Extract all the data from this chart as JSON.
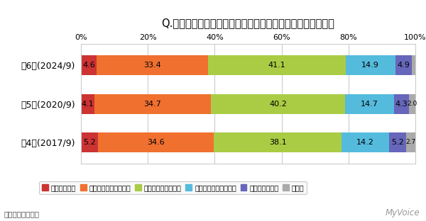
{
  "title": "Q.健康食品を利用した効果を、どの程度実感していますか？",
  "rows": [
    "第6回(2024/9)",
    "第5回(2020/9)",
    "第4回(2017/9)"
  ],
  "categories": [
    "実感している",
    "ある程度実感している",
    "どちらともいえない",
    "あまり実感していない",
    "実感していない",
    "無回答"
  ],
  "colors": [
    "#cc3333",
    "#f07030",
    "#aacc44",
    "#55bbdd",
    "#6666bb",
    "#aaaaaa"
  ],
  "data": [
    [
      4.6,
      33.4,
      41.1,
      14.9,
      4.9,
      1.2
    ],
    [
      4.1,
      34.7,
      40.2,
      14.7,
      4.3,
      2.0
    ],
    [
      5.2,
      34.6,
      38.1,
      14.2,
      5.2,
      2.7
    ]
  ],
  "xlim": [
    0,
    100
  ],
  "xticks": [
    0,
    20,
    40,
    60,
    80,
    100
  ],
  "xticklabels": [
    "0%",
    "20%",
    "40%",
    "60%",
    "80%",
    "100%"
  ],
  "footer_left": "：健康食品利用者",
  "footer_right": "MyVoice",
  "bg_color": "#ffffff",
  "chart_bg": "#ffffff",
  "legend_bg": "#f8f8f8",
  "bar_height": 0.52,
  "label_fontsize": 8,
  "title_fontsize": 10.5,
  "ytick_fontsize": 9,
  "xtick_fontsize": 8
}
